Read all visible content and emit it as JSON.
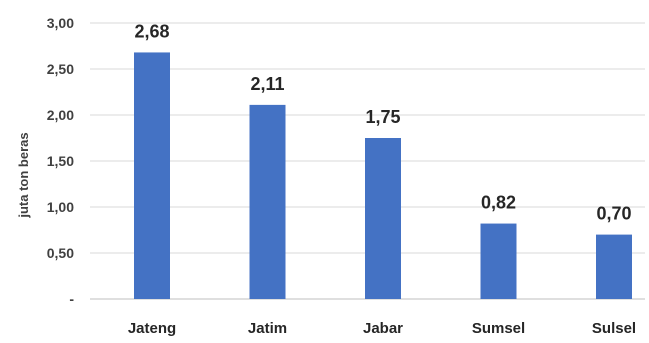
{
  "chart_data": {
    "type": "bar",
    "title": "",
    "xlabel": "",
    "ylabel": "juta ton beras",
    "categories": [
      "Jateng",
      "Jatim",
      "Jabar",
      "Sumsel",
      "Sulsel"
    ],
    "values": [
      2.68,
      2.11,
      1.75,
      0.82,
      0.7
    ],
    "value_labels": [
      "2,68",
      "2,11",
      "1,75",
      "0,82",
      "0,70"
    ],
    "ylim": [
      0,
      3
    ],
    "yticks": [
      0,
      0.5,
      1,
      1.5,
      2,
      2.5,
      3
    ],
    "ytick_labels": [
      "-",
      "0,50",
      "1,00",
      "1,50",
      "2,00",
      "2,50",
      "3,00"
    ],
    "grid": true,
    "legend": "none",
    "colors": {
      "bar": "#4472C4",
      "grid": "#d9d9d9",
      "axis": "#bfbfbf"
    }
  }
}
